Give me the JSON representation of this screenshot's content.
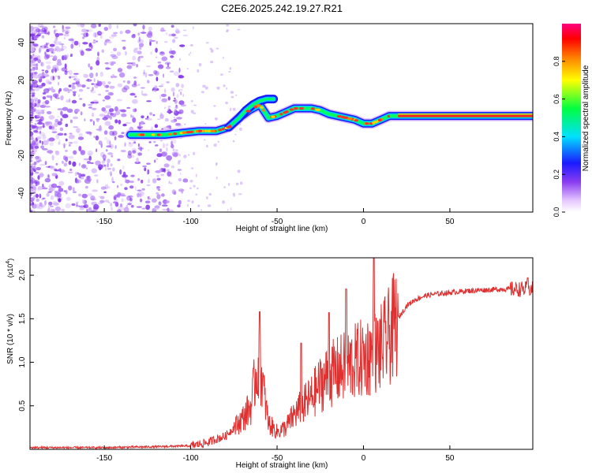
{
  "title": "C2E6.2025.242.19.27.R21",
  "colors": {
    "snr_line": "#e03030",
    "axis": "#000000",
    "scatter_purple": "#8a3cf0"
  },
  "chart_data": [
    {
      "type": "heatmap",
      "name": "spectrogram",
      "xlabel": "Height of straight line (km)",
      "ylabel": "Frequency (Hz)",
      "xlim": [
        -193,
        98
      ],
      "ylim": [
        -50,
        50
      ],
      "xticks": [
        -150,
        -100,
        -50,
        0,
        50
      ],
      "yticks": [
        -40,
        -20,
        0,
        20,
        40
      ],
      "grid": false,
      "ridge": {
        "x": [
          -135,
          -125,
          -115,
          -105,
          -95,
          -85,
          -78,
          -72,
          -66,
          -60,
          -55,
          -50,
          -45,
          -40,
          -35,
          -30,
          -25,
          -20,
          -15,
          -10,
          -5,
          0,
          5,
          10,
          15,
          20,
          30,
          40,
          50,
          60,
          70,
          80,
          90,
          98
        ],
        "y": [
          -9,
          -9,
          -9,
          -8,
          -7,
          -7,
          -5,
          0,
          4,
          7,
          0,
          1,
          3,
          5,
          5,
          5,
          4,
          2,
          1,
          0,
          -1,
          -3,
          -3,
          -1,
          1,
          1,
          1,
          1,
          1,
          1,
          1,
          1,
          1,
          1
        ]
      },
      "upper_branch": {
        "x": [
          -78,
          -72,
          -68,
          -64,
          -60,
          -56,
          -52
        ],
        "y": [
          -5,
          0,
          4,
          7,
          9,
          10,
          10
        ]
      },
      "colorbar": {
        "label": "Normalized spectral amplitude",
        "range": [
          0,
          1
        ],
        "ticks": [
          "0.0",
          "0.2",
          "0.4",
          "0.6",
          "0.8"
        ],
        "tick_values": [
          0.0,
          0.2,
          0.4,
          0.6,
          0.8
        ]
      }
    },
    {
      "type": "line",
      "name": "snr",
      "xlabel": "Height of straight line (km)",
      "ylabel": "SNR (10 * v/v)",
      "y_multiplier_label": "(x10",
      "y_multiplier_exp": "4",
      "xlim": [
        -193,
        98
      ],
      "ylim": [
        0,
        2.2
      ],
      "xticks": [
        -150,
        -100,
        -50,
        0,
        50
      ],
      "yticks": [
        0.5,
        1.0,
        1.5,
        2.0
      ],
      "ytick_labels": [
        "0.5",
        "1.0",
        "1.5",
        "2.0"
      ],
      "grid": false,
      "envelope": {
        "x": [
          -193,
          -150,
          -120,
          -100,
          -90,
          -85,
          -80,
          -75,
          -70,
          -65,
          -62,
          -60,
          -58,
          -55,
          -50,
          -45,
          -40,
          -35,
          -30,
          -25,
          -20,
          -15,
          -10,
          -5,
          0,
          5,
          10,
          15,
          20,
          25,
          30,
          35,
          40,
          50,
          60,
          70,
          80,
          90,
          98
        ],
        "y": [
          0.02,
          0.02,
          0.03,
          0.04,
          0.08,
          0.12,
          0.15,
          0.25,
          0.35,
          0.5,
          0.9,
          1.0,
          0.7,
          0.3,
          0.2,
          0.25,
          0.4,
          0.5,
          0.6,
          0.75,
          0.85,
          0.9,
          0.95,
          1.0,
          1.05,
          1.1,
          1.15,
          1.3,
          1.5,
          1.65,
          1.72,
          1.76,
          1.78,
          1.8,
          1.82,
          1.83,
          1.84,
          1.84,
          1.84
        ]
      },
      "peaks": [
        {
          "x": -60,
          "y": 1.58
        },
        {
          "x": -36,
          "y": 1.22
        },
        {
          "x": -20,
          "y": 1.57
        },
        {
          "x": -10,
          "y": 1.84
        },
        {
          "x": 6,
          "y": 2.2
        },
        {
          "x": 95,
          "y": 1.97
        }
      ]
    }
  ]
}
